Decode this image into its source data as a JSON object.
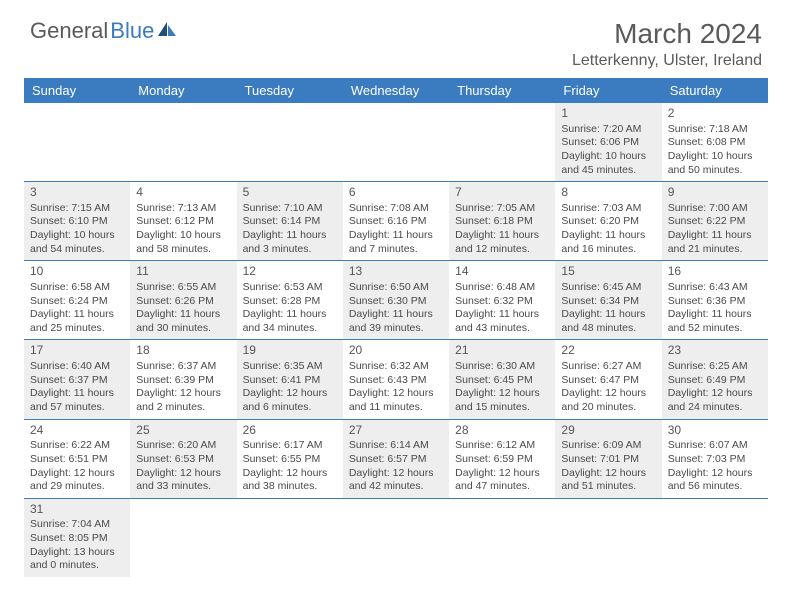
{
  "logo": {
    "text1": "General",
    "text2": "Blue"
  },
  "title": "March 2024",
  "location": "Letterkenny, Ulster, Ireland",
  "dayNames": [
    "Sunday",
    "Monday",
    "Tuesday",
    "Wednesday",
    "Thursday",
    "Friday",
    "Saturday"
  ],
  "colors": {
    "header_bg": "#3b7bbf",
    "header_text": "#ffffff",
    "shaded_cell": "#eeeeee",
    "text": "#4a4a4a",
    "title_text": "#5a5a5a",
    "border": "#3b7bbf"
  },
  "weeks": [
    [
      {
        "blank": true
      },
      {
        "blank": true
      },
      {
        "blank": true
      },
      {
        "blank": true
      },
      {
        "blank": true
      },
      {
        "day": "1",
        "shaded": true,
        "sunrise": "Sunrise: 7:20 AM",
        "sunset": "Sunset: 6:06 PM",
        "daylight1": "Daylight: 10 hours",
        "daylight2": "and 45 minutes."
      },
      {
        "day": "2",
        "shaded": false,
        "sunrise": "Sunrise: 7:18 AM",
        "sunset": "Sunset: 6:08 PM",
        "daylight1": "Daylight: 10 hours",
        "daylight2": "and 50 minutes."
      }
    ],
    [
      {
        "day": "3",
        "shaded": true,
        "sunrise": "Sunrise: 7:15 AM",
        "sunset": "Sunset: 6:10 PM",
        "daylight1": "Daylight: 10 hours",
        "daylight2": "and 54 minutes."
      },
      {
        "day": "4",
        "shaded": false,
        "sunrise": "Sunrise: 7:13 AM",
        "sunset": "Sunset: 6:12 PM",
        "daylight1": "Daylight: 10 hours",
        "daylight2": "and 58 minutes."
      },
      {
        "day": "5",
        "shaded": true,
        "sunrise": "Sunrise: 7:10 AM",
        "sunset": "Sunset: 6:14 PM",
        "daylight1": "Daylight: 11 hours",
        "daylight2": "and 3 minutes."
      },
      {
        "day": "6",
        "shaded": false,
        "sunrise": "Sunrise: 7:08 AM",
        "sunset": "Sunset: 6:16 PM",
        "daylight1": "Daylight: 11 hours",
        "daylight2": "and 7 minutes."
      },
      {
        "day": "7",
        "shaded": true,
        "sunrise": "Sunrise: 7:05 AM",
        "sunset": "Sunset: 6:18 PM",
        "daylight1": "Daylight: 11 hours",
        "daylight2": "and 12 minutes."
      },
      {
        "day": "8",
        "shaded": false,
        "sunrise": "Sunrise: 7:03 AM",
        "sunset": "Sunset: 6:20 PM",
        "daylight1": "Daylight: 11 hours",
        "daylight2": "and 16 minutes."
      },
      {
        "day": "9",
        "shaded": true,
        "sunrise": "Sunrise: 7:00 AM",
        "sunset": "Sunset: 6:22 PM",
        "daylight1": "Daylight: 11 hours",
        "daylight2": "and 21 minutes."
      }
    ],
    [
      {
        "day": "10",
        "shaded": false,
        "sunrise": "Sunrise: 6:58 AM",
        "sunset": "Sunset: 6:24 PM",
        "daylight1": "Daylight: 11 hours",
        "daylight2": "and 25 minutes."
      },
      {
        "day": "11",
        "shaded": true,
        "sunrise": "Sunrise: 6:55 AM",
        "sunset": "Sunset: 6:26 PM",
        "daylight1": "Daylight: 11 hours",
        "daylight2": "and 30 minutes."
      },
      {
        "day": "12",
        "shaded": false,
        "sunrise": "Sunrise: 6:53 AM",
        "sunset": "Sunset: 6:28 PM",
        "daylight1": "Daylight: 11 hours",
        "daylight2": "and 34 minutes."
      },
      {
        "day": "13",
        "shaded": true,
        "sunrise": "Sunrise: 6:50 AM",
        "sunset": "Sunset: 6:30 PM",
        "daylight1": "Daylight: 11 hours",
        "daylight2": "and 39 minutes."
      },
      {
        "day": "14",
        "shaded": false,
        "sunrise": "Sunrise: 6:48 AM",
        "sunset": "Sunset: 6:32 PM",
        "daylight1": "Daylight: 11 hours",
        "daylight2": "and 43 minutes."
      },
      {
        "day": "15",
        "shaded": true,
        "sunrise": "Sunrise: 6:45 AM",
        "sunset": "Sunset: 6:34 PM",
        "daylight1": "Daylight: 11 hours",
        "daylight2": "and 48 minutes."
      },
      {
        "day": "16",
        "shaded": false,
        "sunrise": "Sunrise: 6:43 AM",
        "sunset": "Sunset: 6:36 PM",
        "daylight1": "Daylight: 11 hours",
        "daylight2": "and 52 minutes."
      }
    ],
    [
      {
        "day": "17",
        "shaded": true,
        "sunrise": "Sunrise: 6:40 AM",
        "sunset": "Sunset: 6:37 PM",
        "daylight1": "Daylight: 11 hours",
        "daylight2": "and 57 minutes."
      },
      {
        "day": "18",
        "shaded": false,
        "sunrise": "Sunrise: 6:37 AM",
        "sunset": "Sunset: 6:39 PM",
        "daylight1": "Daylight: 12 hours",
        "daylight2": "and 2 minutes."
      },
      {
        "day": "19",
        "shaded": true,
        "sunrise": "Sunrise: 6:35 AM",
        "sunset": "Sunset: 6:41 PM",
        "daylight1": "Daylight: 12 hours",
        "daylight2": "and 6 minutes."
      },
      {
        "day": "20",
        "shaded": false,
        "sunrise": "Sunrise: 6:32 AM",
        "sunset": "Sunset: 6:43 PM",
        "daylight1": "Daylight: 12 hours",
        "daylight2": "and 11 minutes."
      },
      {
        "day": "21",
        "shaded": true,
        "sunrise": "Sunrise: 6:30 AM",
        "sunset": "Sunset: 6:45 PM",
        "daylight1": "Daylight: 12 hours",
        "daylight2": "and 15 minutes."
      },
      {
        "day": "22",
        "shaded": false,
        "sunrise": "Sunrise: 6:27 AM",
        "sunset": "Sunset: 6:47 PM",
        "daylight1": "Daylight: 12 hours",
        "daylight2": "and 20 minutes."
      },
      {
        "day": "23",
        "shaded": true,
        "sunrise": "Sunrise: 6:25 AM",
        "sunset": "Sunset: 6:49 PM",
        "daylight1": "Daylight: 12 hours",
        "daylight2": "and 24 minutes."
      }
    ],
    [
      {
        "day": "24",
        "shaded": false,
        "sunrise": "Sunrise: 6:22 AM",
        "sunset": "Sunset: 6:51 PM",
        "daylight1": "Daylight: 12 hours",
        "daylight2": "and 29 minutes."
      },
      {
        "day": "25",
        "shaded": true,
        "sunrise": "Sunrise: 6:20 AM",
        "sunset": "Sunset: 6:53 PM",
        "daylight1": "Daylight: 12 hours",
        "daylight2": "and 33 minutes."
      },
      {
        "day": "26",
        "shaded": false,
        "sunrise": "Sunrise: 6:17 AM",
        "sunset": "Sunset: 6:55 PM",
        "daylight1": "Daylight: 12 hours",
        "daylight2": "and 38 minutes."
      },
      {
        "day": "27",
        "shaded": true,
        "sunrise": "Sunrise: 6:14 AM",
        "sunset": "Sunset: 6:57 PM",
        "daylight1": "Daylight: 12 hours",
        "daylight2": "and 42 minutes."
      },
      {
        "day": "28",
        "shaded": false,
        "sunrise": "Sunrise: 6:12 AM",
        "sunset": "Sunset: 6:59 PM",
        "daylight1": "Daylight: 12 hours",
        "daylight2": "and 47 minutes."
      },
      {
        "day": "29",
        "shaded": true,
        "sunrise": "Sunrise: 6:09 AM",
        "sunset": "Sunset: 7:01 PM",
        "daylight1": "Daylight: 12 hours",
        "daylight2": "and 51 minutes."
      },
      {
        "day": "30",
        "shaded": false,
        "sunrise": "Sunrise: 6:07 AM",
        "sunset": "Sunset: 7:03 PM",
        "daylight1": "Daylight: 12 hours",
        "daylight2": "and 56 minutes."
      }
    ],
    [
      {
        "day": "31",
        "shaded": true,
        "sunrise": "Sunrise: 7:04 AM",
        "sunset": "Sunset: 8:05 PM",
        "daylight1": "Daylight: 13 hours",
        "daylight2": "and 0 minutes."
      },
      {
        "blank": true
      },
      {
        "blank": true
      },
      {
        "blank": true
      },
      {
        "blank": true
      },
      {
        "blank": true
      },
      {
        "blank": true
      }
    ]
  ]
}
